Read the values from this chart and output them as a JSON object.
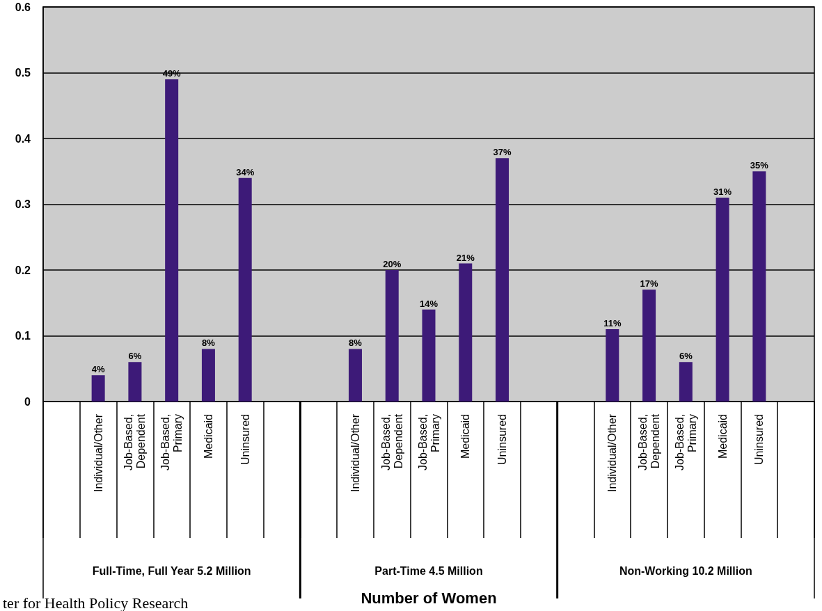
{
  "chart_data": {
    "type": "bar",
    "categories": [
      null,
      "Individual/Other",
      "Job-Based,\nDependent",
      "Job-Based,\nPrimary",
      "Medicaid",
      "Uninsured",
      null,
      null,
      "Individual/Other",
      "Job-Based,\nDependent",
      "Job-Based,\nPrimary",
      "Medicaid",
      "Uninsured",
      null,
      null,
      "Individual/Other",
      "Job-Based,\nDependent",
      "Job-Based,\nPrimary",
      "Medicaid",
      "Uninsured",
      null
    ],
    "series": [
      {
        "color": "#3d1a78",
        "values": [
          null,
          0.04,
          0.06,
          0.49,
          0.08,
          0.34,
          null,
          null,
          0.08,
          0.2,
          0.14,
          0.21,
          0.37,
          null,
          null,
          0.11,
          0.17,
          0.06,
          0.31,
          0.35,
          null
        ],
        "value_labels": [
          null,
          "4%",
          "6%",
          "49%",
          "8%",
          "34%",
          null,
          null,
          "8%",
          "20%",
          "14%",
          "21%",
          "37%",
          null,
          null,
          "11%",
          "17%",
          "6%",
          "31%",
          "35%",
          null
        ]
      }
    ],
    "ylim": [
      0,
      0.6
    ],
    "yticks": [
      0,
      0.1,
      0.2,
      0.3,
      0.4,
      0.5,
      0.6
    ],
    "grid": "y",
    "annotations": [
      "Full-Time, Full Year 5.2 Million",
      "Part-Time 4.5 Million",
      "Non-Working 10.2 Million",
      "ter for Health Policy Research",
      "Number of Women"
    ]
  }
}
